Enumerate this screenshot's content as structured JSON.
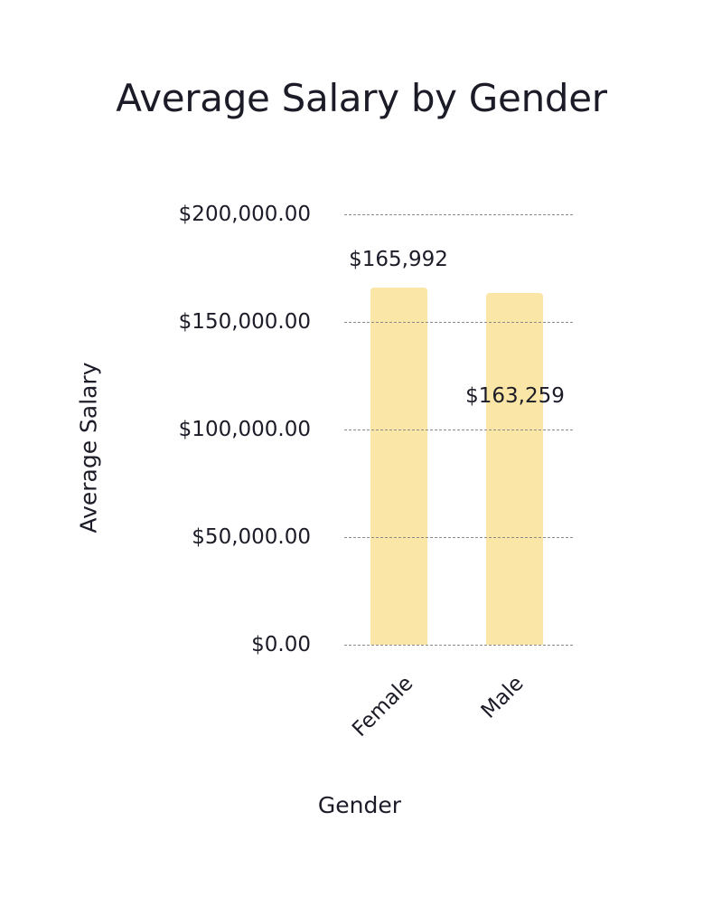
{
  "chart_data": {
    "type": "bar",
    "title": "Average Salary by Gender",
    "xlabel": "Gender",
    "ylabel": "Average Salary",
    "categories": [
      "Female",
      "Male"
    ],
    "values": [
      165992,
      163259
    ],
    "data_labels": [
      "$165,992",
      "$163,259"
    ],
    "ylim": [
      0,
      200000
    ],
    "yticks": [
      0,
      50000,
      100000,
      150000,
      200000
    ],
    "ytick_labels": [
      "$0.00",
      "$50,000.00",
      "$100,000.00",
      "$150,000.00",
      "$200,000.00"
    ],
    "grid": true,
    "bar_color": "#fae6a6",
    "legend": null
  }
}
